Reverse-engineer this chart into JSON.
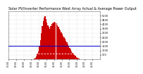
{
  "title": "Solar PV/Inverter Performance West Array Actual & Average Power Output",
  "title_fontsize": 3.5,
  "bg_color": "#ffffff",
  "plot_bg_color": "#ffffff",
  "bar_color": "#cc0000",
  "avg_line_color": "#0000cc",
  "avg_value": 1500,
  "ref_line_color": "#ffffff",
  "ref_value": 600,
  "ylim": [
    0,
    5500
  ],
  "xlim": [
    0,
    96
  ],
  "grid_color": "#bbbbbb",
  "yticks": [
    500,
    1000,
    1500,
    2000,
    2500,
    3000,
    3500,
    4000,
    4500,
    5000
  ],
  "bar_data": [
    0,
    0,
    0,
    0,
    0,
    0,
    0,
    0,
    0,
    0,
    0,
    0,
    0,
    0,
    0,
    0,
    0,
    0,
    0,
    0,
    0,
    0,
    0,
    0,
    0,
    0,
    30,
    80,
    180,
    350,
    600,
    900,
    1500,
    2200,
    3000,
    3800,
    4400,
    4800,
    4900,
    4600,
    4200,
    3900,
    3700,
    3500,
    3800,
    4000,
    4100,
    4200,
    4300,
    4200,
    4100,
    3900,
    3700,
    3500,
    3300,
    3100,
    2900,
    2700,
    2500,
    2300,
    2100,
    1900,
    1700,
    1500,
    1300,
    1100,
    900,
    750,
    600,
    480,
    360,
    260,
    180,
    110,
    60,
    20,
    0,
    0,
    0,
    0,
    0,
    0,
    0,
    0,
    0,
    0,
    0,
    0,
    0,
    0,
    0,
    0,
    0,
    0,
    0,
    0
  ],
  "outer_border_color": "#888888"
}
